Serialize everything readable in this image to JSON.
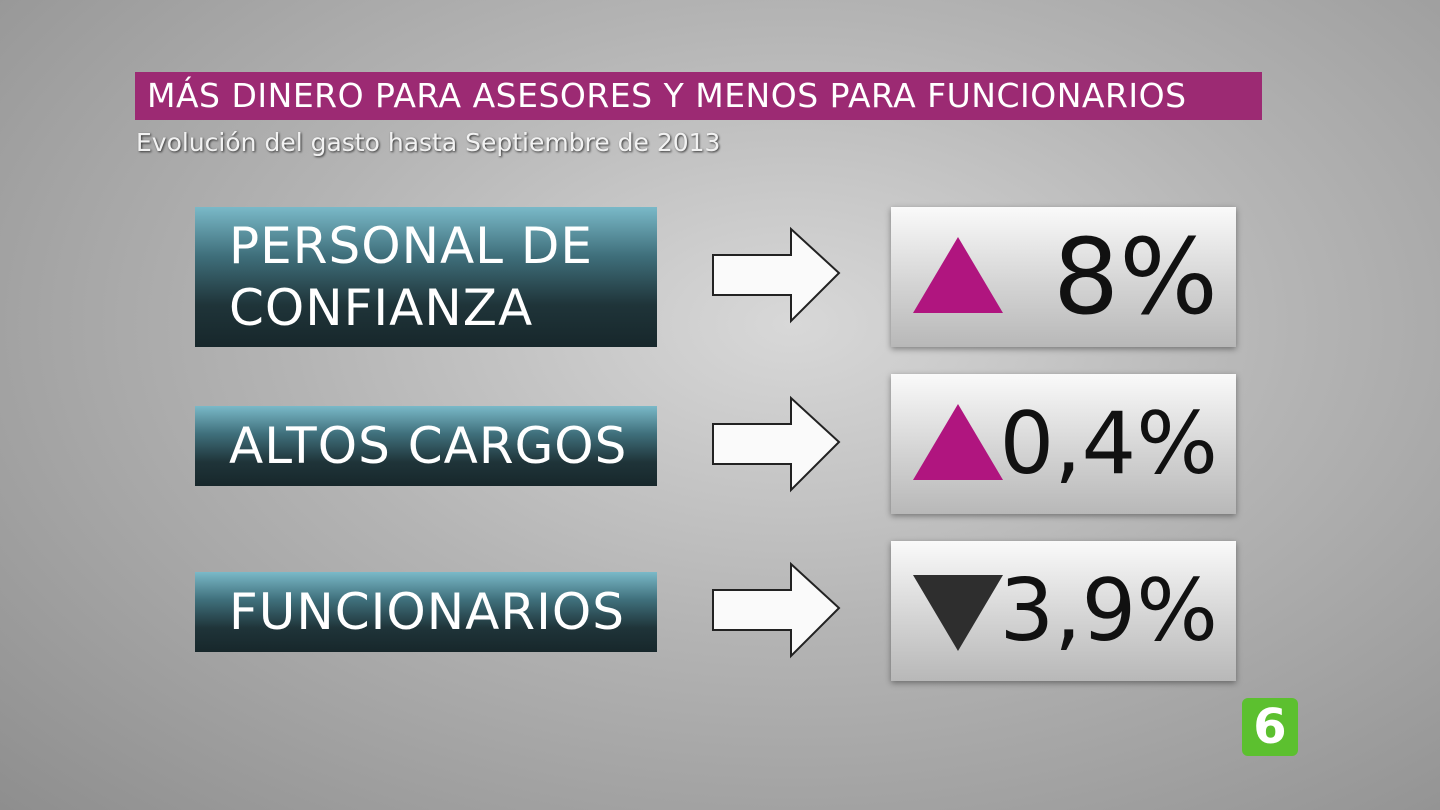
{
  "header": {
    "title": "MÁS DINERO PARA ASESORES Y MENOS PARA FUNCIONARIOS",
    "subtitle": "Evolución del gasto hasta Septiembre de 2013"
  },
  "rows": [
    {
      "label": "PERSONAL DE\nCONFIANZA",
      "value": "8%",
      "trend": "up"
    },
    {
      "label": "ALTOS CARGOS",
      "value": "0,4%",
      "trend": "up"
    },
    {
      "label": "FUNCIONARIOS",
      "value": "3,9%",
      "trend": "down"
    }
  ],
  "logo": {
    "text": "6"
  }
}
